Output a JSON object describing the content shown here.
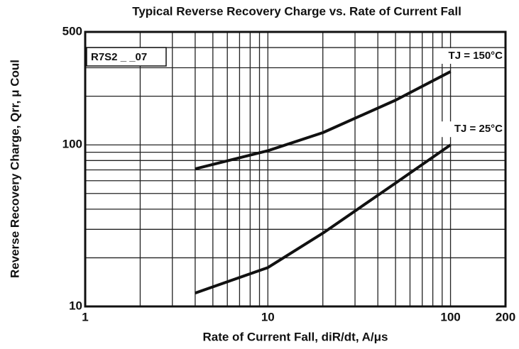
{
  "chart_data": {
    "type": "line",
    "title": "Typical Reverse Recovery Charge vs. Rate of Current Fall",
    "xlabel": "Rate of Current Fall, diR/dt, A/μs",
    "ylabel": "Reverse Recovery Charge, Qrr, μ Coul",
    "annotation": "R7S2 _ _07",
    "log_x": true,
    "log_y": true,
    "grid": true,
    "xlim": [
      1,
      200
    ],
    "ylim": [
      10,
      500
    ],
    "xticks": [
      1,
      10,
      100,
      200
    ],
    "yticks": [
      10,
      100,
      500
    ],
    "xgrid": [
      1,
      2,
      3,
      4,
      5,
      6,
      7,
      8,
      9,
      10,
      20,
      30,
      40,
      50,
      60,
      70,
      80,
      90,
      100,
      200
    ],
    "ygrid": [
      10,
      20,
      30,
      40,
      50,
      60,
      70,
      80,
      90,
      100,
      200,
      300,
      400,
      500
    ],
    "x": [
      4,
      10,
      20,
      50,
      100
    ],
    "series": [
      {
        "name": "TJ = 150°C",
        "color": "#111111",
        "values": [
          71,
          92,
          119,
          189,
          284
        ]
      },
      {
        "name": "TJ = 25°C",
        "color": "#111111",
        "values": [
          12.1,
          17.4,
          28.4,
          58,
          100
        ]
      }
    ]
  }
}
